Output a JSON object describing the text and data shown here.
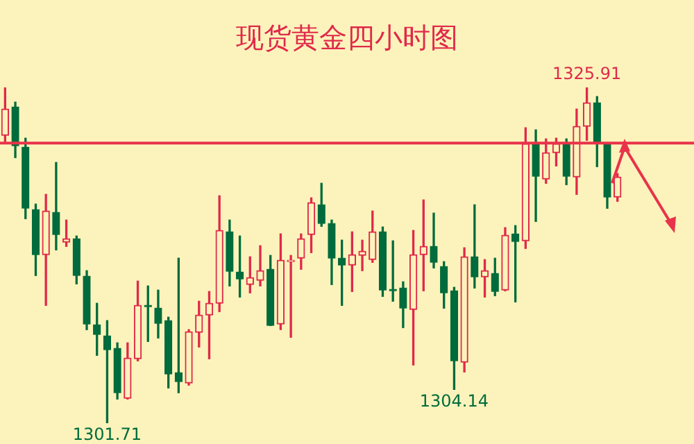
{
  "chart_data": {
    "type": "candlestick",
    "title": "现货黄金四小时图",
    "categories": [
      null,
      null,
      null,
      null,
      null,
      null,
      null,
      null,
      null,
      null,
      null,
      null,
      null,
      null,
      null,
      null,
      null,
      null,
      null,
      null,
      null,
      null,
      null,
      null,
      null,
      null,
      null,
      null,
      null,
      null,
      null,
      null,
      null,
      null,
      null,
      null,
      null,
      null,
      null,
      null,
      null,
      null,
      null,
      null,
      null,
      null,
      null,
      null,
      null,
      null,
      null,
      null,
      null,
      null,
      null,
      null,
      null,
      null,
      null,
      null,
      null,
      null,
      null,
      null,
      null,
      null,
      null,
      null
    ],
    "ohlc": [
      [
        1322.45,
        1325.9,
        1322.0,
        1324.35
      ],
      [
        1324.5,
        1324.85,
        1320.85,
        1321.7
      ],
      [
        1321.6,
        1322.25,
        1316.45,
        1317.2
      ],
      [
        1317.1,
        1317.5,
        1312.35,
        1313.85
      ],
      [
        1313.85,
        1318.2,
        1310.2,
        1317.0
      ],
      [
        1316.9,
        1320.5,
        1314.2,
        1315.3
      ],
      [
        1314.75,
        1316.35,
        1314.45,
        1315.0
      ],
      [
        1315.0,
        1315.2,
        1311.75,
        1312.35
      ],
      [
        1312.3,
        1312.7,
        1308.45,
        1308.85
      ],
      [
        1308.8,
        1310.35,
        1306.6,
        1308.1
      ],
      [
        1308.0,
        1309.1,
        1301.71,
        1307.0
      ],
      [
        1307.1,
        1307.5,
        1303.45,
        1303.9
      ],
      [
        1303.5,
        1307.5,
        1303.45,
        1306.4
      ],
      [
        1306.35,
        1311.95,
        1306.2,
        1310.2
      ],
      [
        1310.2,
        1311.6,
        1307.6,
        1310.1
      ],
      [
        1310.0,
        1311.3,
        1307.85,
        1308.9
      ],
      [
        1309.1,
        1309.35,
        1304.25,
        1305.25
      ],
      [
        1305.35,
        1313.6,
        1303.9,
        1304.7
      ],
      [
        1304.6,
        1308.45,
        1304.45,
        1308.3
      ],
      [
        1308.25,
        1310.5,
        1307.2,
        1309.5
      ],
      [
        1309.5,
        1311.2,
        1306.35,
        1310.35
      ],
      [
        1310.35,
        1318.1,
        1309.75,
        1315.6
      ],
      [
        1315.5,
        1316.35,
        1311.6,
        1312.65
      ],
      [
        1312.6,
        1315.2,
        1310.8,
        1312.1
      ],
      [
        1311.7,
        1313.7,
        1311.1,
        1312.2
      ],
      [
        1312.0,
        1314.5,
        1311.6,
        1312.7
      ],
      [
        1312.8,
        1313.8,
        1308.75,
        1308.75
      ],
      [
        1308.85,
        1315.35,
        1308.45,
        1313.45
      ],
      [
        1313.35,
        1313.8,
        1307.9,
        1313.45
      ],
      [
        1313.6,
        1315.35,
        1312.8,
        1315.0
      ],
      [
        1315.3,
        1317.95,
        1314.0,
        1317.6
      ],
      [
        1317.45,
        1319.0,
        1315.9,
        1316.1
      ],
      [
        1316.1,
        1316.35,
        1311.7,
        1313.6
      ],
      [
        1313.6,
        1314.9,
        1310.2,
        1313.1
      ],
      [
        1313.1,
        1315.5,
        1311.2,
        1313.85
      ],
      [
        1313.8,
        1314.9,
        1312.7,
        1314.1
      ],
      [
        1313.5,
        1317.0,
        1313.3,
        1315.5
      ],
      [
        1315.5,
        1315.85,
        1310.85,
        1311.3
      ],
      [
        1311.35,
        1314.85,
        1310.5,
        1311.25
      ],
      [
        1311.45,
        1311.9,
        1308.6,
        1310.0
      ],
      [
        1309.9,
        1315.6,
        1305.9,
        1313.85
      ],
      [
        1313.85,
        1317.8,
        1311.25,
        1314.45
      ],
      [
        1314.45,
        1316.85,
        1312.9,
        1313.3
      ],
      [
        1313.0,
        1313.35,
        1310.0,
        1311.1
      ],
      [
        1311.25,
        1311.5,
        1304.14,
        1306.2
      ],
      [
        1306.1,
        1314.35,
        1305.4,
        1313.7
      ],
      [
        1313.7,
        1317.45,
        1311.45,
        1312.25
      ],
      [
        1312.25,
        1313.5,
        1310.8,
        1312.7
      ],
      [
        1312.5,
        1313.6,
        1310.9,
        1311.2
      ],
      [
        1311.3,
        1315.8,
        1311.25,
        1315.25
      ],
      [
        1315.35,
        1315.95,
        1310.45,
        1314.8
      ],
      [
        1314.85,
        1323.0,
        1314.3,
        1321.85
      ],
      [
        1321.85,
        1322.85,
        1316.25,
        1319.5
      ],
      [
        1319.3,
        1322.2,
        1319.0,
        1321.2
      ],
      [
        1321.2,
        1322.25,
        1320.25,
        1321.85
      ],
      [
        1321.85,
        1322.2,
        1318.9,
        1319.5
      ],
      [
        1319.45,
        1324.35,
        1318.2,
        1323.1
      ],
      [
        1323.1,
        1325.91,
        1322.1,
        1324.8
      ],
      [
        1324.8,
        1325.25,
        1320.2,
        1321.95
      ],
      [
        1321.8,
        1321.9,
        1317.2,
        1318.0
      ],
      [
        1318.0,
        1319.7,
        1317.7,
        1319.45
      ],
      null,
      null,
      null,
      null,
      null,
      null,
      null
    ],
    "colors": [
      "#e0294a",
      "#006b3c",
      "#006b3c",
      "#006b3c",
      "#e0294a",
      "#006b3c",
      "#e0294a",
      "#006b3c",
      "#006b3c",
      "#006b3c",
      "#006b3c",
      "#006b3c",
      "#e0294a",
      "#e0294a",
      "#006b3c",
      "#006b3c",
      "#006b3c",
      "#006b3c",
      "#e0294a",
      "#e0294a",
      "#e0294a",
      "#e0294a",
      "#006b3c",
      "#006b3c",
      "#e0294a",
      "#e0294a",
      "#006b3c",
      "#e0294a",
      "#e0294a",
      "#e0294a",
      "#e0294a",
      "#006b3c",
      "#006b3c",
      "#006b3c",
      "#e0294a",
      "#e0294a",
      "#e0294a",
      "#006b3c",
      "#006b3c",
      "#006b3c",
      "#e0294a",
      "#e0294a",
      "#006b3c",
      "#006b3c",
      "#006b3c",
      "#e0294a",
      "#006b3c",
      "#e0294a",
      "#006b3c",
      "#e0294a",
      "#006b3c",
      "#e0294a",
      "#006b3c",
      "#e0294a",
      "#e0294a",
      "#006b3c",
      "#e0294a",
      "#e0294a",
      "#006b3c",
      "#006b3c",
      "#e0294a",
      null,
      null,
      null,
      null,
      null,
      null,
      null
    ],
    "ref_lines": [
      {
        "axis": "y",
        "value": 1321.9,
        "color": "#e8334a",
        "line_style": "solid"
      }
    ],
    "annotations": [
      {
        "text": "1325.91",
        "y": 1325.91
      },
      {
        "text": "1301.71",
        "y": 1301.71
      },
      {
        "text": "1304.14",
        "y": 1304.14
      }
    ]
  }
}
